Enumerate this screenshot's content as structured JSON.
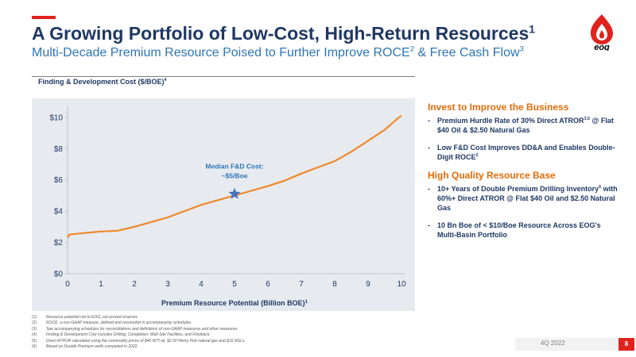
{
  "header": {
    "title": "A Growing Portfolio of Low-Cost, High-Return Resources",
    "title_sup": "1",
    "subtitle_pre": "Multi-Decade Premium Resource Poised to Further Improve ROCE",
    "subtitle_sup1": "2",
    "subtitle_mid": " & Free Cash Flow",
    "subtitle_sup2": "3",
    "logo_text": "eog"
  },
  "section": {
    "label": "Finding & Development Cost ($/BOE)",
    "label_sup": "4"
  },
  "chart_data": {
    "type": "line",
    "title": "",
    "xlabel": "Premium Resource Potential (Billion BOE)",
    "xlabel_sup": "1",
    "ylabel": "",
    "xlim": [
      0,
      10
    ],
    "ylim": [
      0,
      10.5
    ],
    "x_ticks": [
      "0",
      "1",
      "2",
      "3",
      "4",
      "5",
      "6",
      "7",
      "8",
      "9",
      "10"
    ],
    "y_ticks": [
      {
        "value": 0,
        "label": "$0"
      },
      {
        "value": 2,
        "label": "$2"
      },
      {
        "value": 4,
        "label": "$4"
      },
      {
        "value": 6,
        "label": "$6"
      },
      {
        "value": 8,
        "label": "$8"
      },
      {
        "value": 10,
        "label": "$10"
      }
    ],
    "grid": false,
    "series": [
      {
        "color": "#f0882a",
        "x": [
          0,
          0.05,
          0.5,
          1,
          1.5,
          1.7,
          2,
          2.5,
          3,
          3.5,
          4,
          4.5,
          5,
          5.5,
          6,
          6.5,
          7,
          7.5,
          8,
          8.5,
          9,
          9.5,
          9.9,
          10
        ],
        "y": [
          2.3,
          2.5,
          2.6,
          2.7,
          2.75,
          2.85,
          3.0,
          3.3,
          3.6,
          4.0,
          4.4,
          4.7,
          5.0,
          5.3,
          5.6,
          5.95,
          6.4,
          6.8,
          7.2,
          7.8,
          8.5,
          9.2,
          9.95,
          10.1
        ]
      }
    ],
    "annotation": {
      "text_line1": "Median F&D Cost:",
      "text_line2": "~$5/Boe",
      "x": 5,
      "y": 5.1,
      "marker": "star",
      "color": "#4472c4"
    }
  },
  "right_panel": {
    "heading1": "Invest to Improve the Business",
    "bullets1": [
      {
        "text": "Premium Hurdle Rate of 30% Direct ATROR",
        "sup": "3,5",
        "text2": " @ Flat $40 Oil & $2.50 Natural Gas"
      },
      {
        "text": "Low F&D Cost Improves DD&A and Enables Double-Digit ROCE",
        "sup": "2",
        "text2": ""
      }
    ],
    "heading2": "High Quality Resource Base",
    "bullets2": [
      {
        "text": "10+ Years of Double Premium Drilling Inventory",
        "sup": "6",
        "text2": " with 60%+ Direct ATROR @ Flat $40 Oil and $2.50 Natural Gas"
      },
      {
        "text": "10 Bn Boe of < $10/Boe Resource Across EOG's Multi-Basin Portfolio",
        "sup": "",
        "text2": ""
      }
    ]
  },
  "footnotes": [
    {
      "num": "(1)",
      "text": "Resource potential net to EOG, not proved reserves"
    },
    {
      "num": "(2)",
      "text": "ROCE, a non-GAAP measure, defined and reconciled in accompanying schedules."
    },
    {
      "num": "(3)",
      "text": "See accompanying schedules for reconciliations and definitions of non-GAAP measures and other measures."
    },
    {
      "num": "(4)",
      "text": "Finding & Development Cost includes Drilling, Completion, Well-Site Facilities, and Flowback."
    },
    {
      "num": "(5)",
      "text": "Direct ATROR calculated using flat commodity prices of $40 WTI oil, $2.50 Henry Hub natural gas and $16 NGLs."
    },
    {
      "num": "(6)",
      "text": "Based on Double Premium wells completed in 2022."
    }
  ],
  "footer": {
    "date": "4Q 2022",
    "page": "8"
  },
  "colors": {
    "navy": "#1f3864",
    "blue": "#2e75b6",
    "orange": "#e36c0a",
    "red": "#e0231d"
  }
}
